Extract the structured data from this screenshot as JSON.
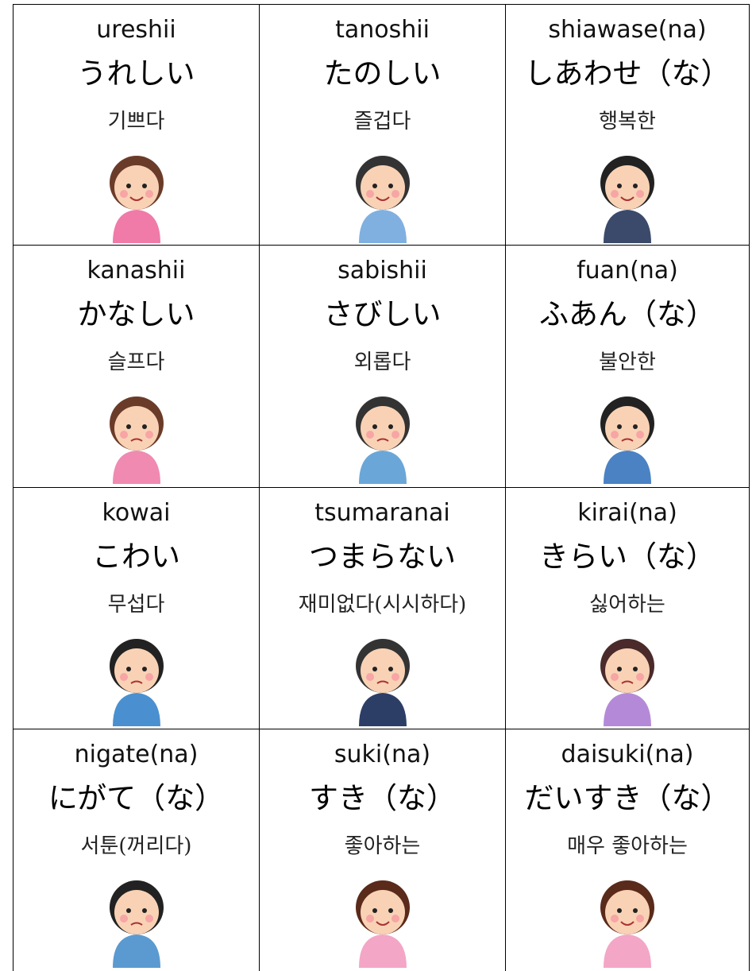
{
  "cards": [
    {
      "romaji": "ureshii",
      "kana": "うれしい",
      "korean": "기쁘다"
    },
    {
      "romaji": "tanoshii",
      "kana": "たのしい",
      "korean": "즐겁다"
    },
    {
      "romaji": "shiawase(na)",
      "kana": "しあわせ（な）",
      "korean": "행복한"
    },
    {
      "romaji": "kanashii",
      "kana": "かなしい",
      "korean": "슬프다"
    },
    {
      "romaji": "sabishii",
      "kana": "さびしい",
      "korean": "외롭다"
    },
    {
      "romaji": "fuan(na)",
      "kana": "ふあん（な）",
      "korean": "불안한"
    },
    {
      "romaji": "kowai",
      "kana": "こわい",
      "korean": "무섭다"
    },
    {
      "romaji": "tsumaranai",
      "kana": "つまらない",
      "korean": "재미없다(시시하다)"
    },
    {
      "romaji": "kirai(na)",
      "kana": "きらい（な）",
      "korean": "싫어하는"
    },
    {
      "romaji": "nigate(na)",
      "kana": "にがて（な）",
      "korean": "서툰(꺼리다)"
    },
    {
      "romaji": "suki(na)",
      "kana": "すき（な）",
      "korean": "좋아하는"
    },
    {
      "romaji": "daisuki(na)",
      "kana": "だいすき（な）",
      "korean": "매우 좋아하는"
    }
  ]
}
